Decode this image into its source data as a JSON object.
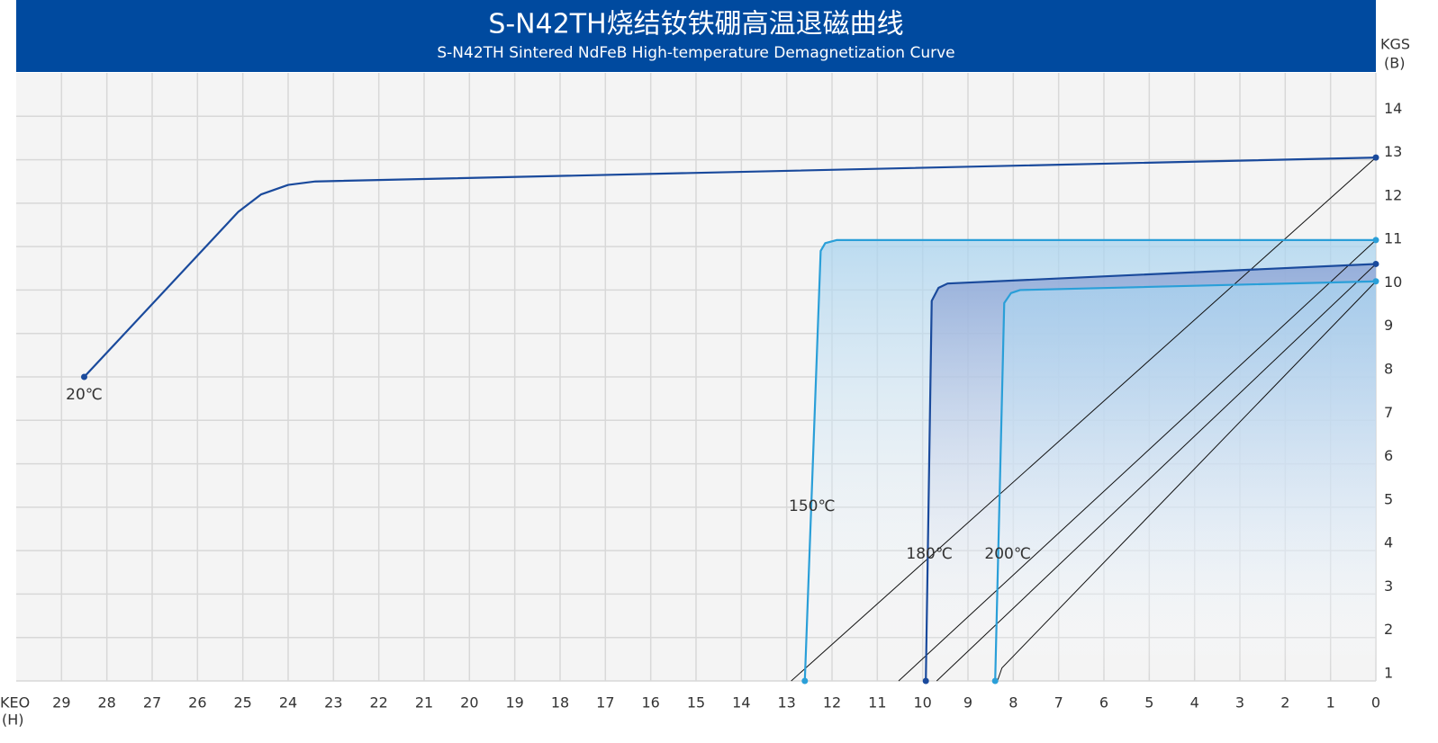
{
  "chart_data": {
    "type": "line",
    "title": "S-N42TH烧结钕铁硼高温退磁曲线",
    "subtitle": "S-N42TH Sintered NdFeB High-temperature Demagnetization Curve",
    "xlabel": [
      "KEO",
      "(H)"
    ],
    "ylabel": [
      "KGS",
      "(B)"
    ],
    "xlim": [
      30,
      0
    ],
    "ylim": [
      1,
      15
    ],
    "xticks": [
      29,
      28,
      27,
      26,
      25,
      24,
      23,
      22,
      21,
      20,
      19,
      18,
      17,
      16,
      15,
      14,
      13,
      12,
      11,
      10,
      9,
      8,
      7,
      6,
      5,
      4,
      3,
      2,
      1,
      0
    ],
    "yticks": [
      1,
      2,
      3,
      4,
      5,
      6,
      7,
      8,
      9,
      10,
      11,
      12,
      13,
      14
    ],
    "grid": true,
    "series": [
      {
        "name": "20℃",
        "color": "#1a4a9c",
        "fill": false,
        "x": [
          28.5,
          25.1,
          24.6,
          24,
          23.4,
          0
        ],
        "values": [
          8,
          11.8,
          12.2,
          12.42,
          12.5,
          13.05
        ]
      },
      {
        "name": "150℃",
        "color": "#2a9fd8",
        "fill": true,
        "x": [
          12.6,
          12.25,
          12.15,
          11.9,
          0
        ],
        "values": [
          1,
          10.9,
          11.08,
          11.15,
          11.15
        ]
      },
      {
        "name": "180℃",
        "color": "#1a4a9c",
        "fill": true,
        "x": [
          9.93,
          9.8,
          9.65,
          9.45,
          0
        ],
        "values": [
          1,
          9.75,
          10.05,
          10.15,
          10.6
        ]
      },
      {
        "name": "200℃",
        "color": "#2a9fd8",
        "fill": true,
        "x": [
          8.4,
          8.2,
          8.05,
          7.85,
          0
        ],
        "values": [
          1,
          9.7,
          9.93,
          10,
          10.2
        ]
      }
    ],
    "load_lines": [
      {
        "color": "#111111",
        "x": [
          0,
          12.9
        ],
        "values": [
          13.05,
          1
        ]
      },
      {
        "color": "#111111",
        "x": [
          0,
          10.53
        ],
        "values": [
          11.15,
          1
        ]
      },
      {
        "color": "#111111",
        "x": [
          0,
          9.69
        ],
        "values": [
          10.6,
          1
        ]
      },
      {
        "color": "#111111",
        "x": [
          0,
          8.25,
          8.35
        ],
        "values": [
          10.2,
          1.3,
          1
        ]
      }
    ]
  }
}
